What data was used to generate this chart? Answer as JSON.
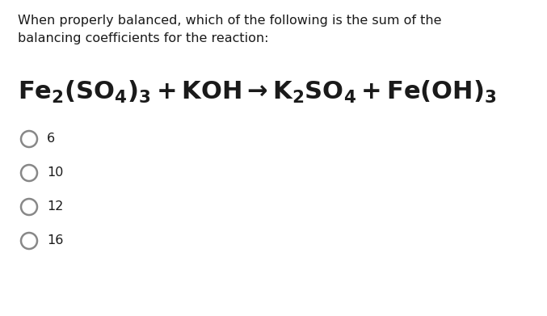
{
  "background_color": "#ffffff",
  "question_text_line1": "When properly balanced, which of the following is the sum of the",
  "question_text_line2": "balancing coefficients for the reaction:",
  "reaction_math": "$\\mathbf{Fe_2(SO_4)_3 + KOH \\rightarrow K_2SO_4 + Fe(OH)_3}$",
  "options": [
    "6",
    "10",
    "12",
    "16"
  ],
  "text_color": "#1a1a1a",
  "circle_color": "#888888",
  "question_fontsize": 11.5,
  "reaction_fontsize": 22,
  "option_fontsize": 11.5,
  "fig_width": 6.77,
  "fig_height": 3.91,
  "dpi": 100
}
